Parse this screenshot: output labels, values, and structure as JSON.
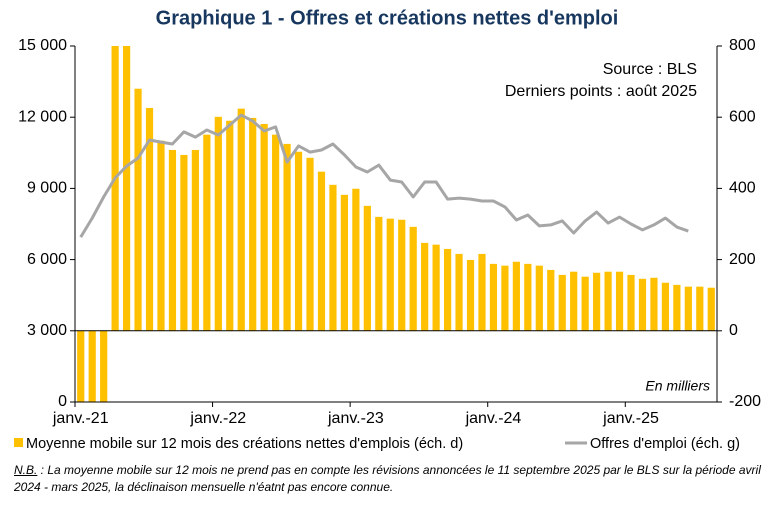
{
  "chart_data": {
    "type": "bar-line",
    "title": "Graphique 1 - Offres et créations nettes d'emploi",
    "annotations": [
      "Source : BLS",
      "Derniers points : août 2025",
      "En milliers"
    ],
    "note_label": "N.B.",
    "note": " : La moyenne mobile sur 12 mois ne prend pas en compte les révisions annoncées le 11 septembre 2025 par le BLS sur la période avril 2024 - mars 2025, la déclinaison mensuelle n'éatnt pas encore connue.",
    "categories": [
      "janv.-21",
      null,
      null,
      null,
      null,
      null,
      null,
      null,
      null,
      null,
      null,
      null,
      "janv.-22",
      null,
      null,
      null,
      null,
      null,
      null,
      null,
      null,
      null,
      null,
      null,
      "janv.-23",
      null,
      null,
      null,
      null,
      null,
      null,
      null,
      null,
      null,
      null,
      null,
      "janv.-24",
      null,
      null,
      null,
      null,
      null,
      null,
      null,
      null,
      null,
      null,
      null,
      "janv.-25",
      null,
      null,
      null,
      null,
      null,
      null,
      null
    ],
    "series": [
      {
        "name": "Moyenne mobile sur 12 mois des créations nettes d'emplois (éch. d)",
        "kind": "bar",
        "axis": "y2",
        "color": "#ffc000",
        "values": [
          -220,
          -220,
          -220,
          850,
          850,
          680,
          626,
          534,
          508,
          494,
          508,
          551,
          601,
          590,
          624,
          598,
          581,
          551,
          525,
          503,
          486,
          447,
          410,
          382,
          399,
          351,
          320,
          315,
          312,
          292,
          247,
          242,
          230,
          216,
          199,
          216,
          188,
          183,
          194,
          188,
          183,
          171,
          157,
          166,
          152,
          163,
          166,
          166,
          157,
          146,
          149,
          135,
          129,
          124,
          124,
          121
        ]
      },
      {
        "name": "Offres d'emploi (éch. g)",
        "kind": "line",
        "color": "#a6a6a6",
        "values": [
          6950,
          7750,
          8640,
          9440,
          9940,
          10280,
          11040,
          10950,
          10870,
          11380,
          11160,
          11460,
          11250,
          11670,
          12090,
          11840,
          11420,
          11590,
          10110,
          10790,
          10530,
          10620,
          10870,
          10410,
          9900,
          9690,
          9980,
          9350,
          9270,
          8640,
          9270,
          9270,
          8550,
          8590,
          8550,
          8470,
          8470,
          8220,
          7670,
          7880,
          7420,
          7460,
          7630,
          7120,
          7630,
          8000,
          7540,
          7790,
          7500,
          7250,
          7460,
          7750,
          7370,
          7200,
          null,
          null
        ]
      }
    ],
    "ylim": [
      0,
      15000
    ],
    "yticks": [
      0,
      {
        "value": 3000,
        "label": "3 000"
      },
      {
        "value": 6000,
        "label": "6 000"
      },
      {
        "value": 9000,
        "label": "9 000"
      },
      {
        "value": 12000,
        "label": "12 000"
      },
      {
        "value": 15000,
        "label": "15 000"
      }
    ],
    "y2lim": [
      -200,
      800
    ],
    "y2ticks": [
      -200,
      0,
      200,
      400,
      600,
      800
    ],
    "grid": false
  }
}
